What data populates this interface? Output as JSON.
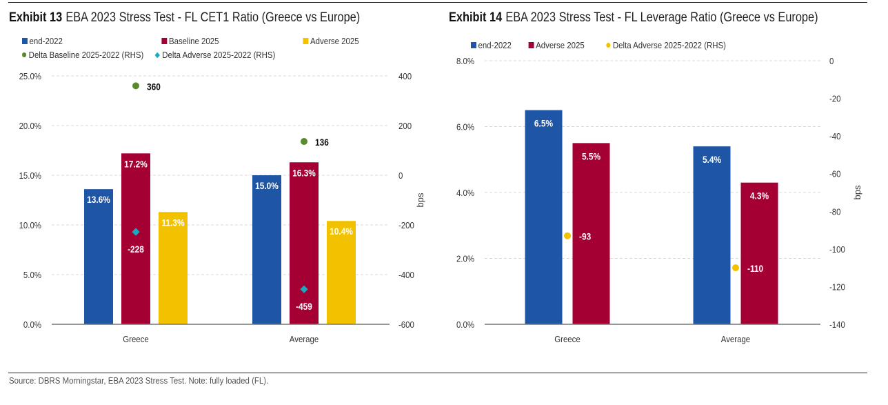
{
  "colors": {
    "end2022": "#1f55a5",
    "baseline2025": "#a50034",
    "adverse2025": "#f2c200",
    "delta_baseline": "#5a8a2e",
    "delta_adverse_cet1": "#1aa9bd",
    "delta_adverse_lev": "#f2c200",
    "grid": "#d8d8d8",
    "axis": "#777777"
  },
  "exhibit13": {
    "number_label": "Exhibit 13",
    "title": "EBA 2023 Stress Test - FL CET1 Ratio (Greece vs Europe)",
    "legend": [
      {
        "label": "end-2022",
        "marker": "square",
        "color_key": "end2022"
      },
      {
        "label": "Baseline 2025",
        "marker": "square",
        "color_key": "baseline2025"
      },
      {
        "label": "Adverse 2025",
        "marker": "square",
        "color_key": "adverse2025"
      },
      {
        "label": "Delta Baseline 2025-2022 (RHS)",
        "marker": "circle",
        "color_key": "delta_baseline"
      },
      {
        "label": "Delta Adverse 2025-2022 (RHS)",
        "marker": "diamond",
        "color_key": "delta_adverse_cet1"
      }
    ]
  },
  "exhibit14": {
    "number_label": "Exhibit 14",
    "title": "EBA 2023 Stress Test - FL Leverage Ratio (Greece vs Europe)",
    "legend": [
      {
        "label": "end-2022",
        "marker": "square",
        "color_key": "end2022"
      },
      {
        "label": "Adverse 2025",
        "marker": "square",
        "color_key": "baseline2025"
      },
      {
        "label": "Delta Adverse 2025-2022 (RHS)",
        "marker": "circle",
        "color_key": "delta_adverse_lev"
      }
    ]
  },
  "source": "Source: DBRS Morningstar, EBA 2023 Stress Test. Note: fully loaded (FL).",
  "chart_data": [
    {
      "type": "bar",
      "title": "EBA 2023 Stress Test - FL CET1 Ratio (Greece vs Europe)",
      "categories": [
        "Greece",
        "Average"
      ],
      "series": [
        {
          "name": "end-2022",
          "values": [
            13.6,
            15.0
          ],
          "labels": [
            "13.6%",
            "15.0%"
          ],
          "axis": "left",
          "kind": "bar"
        },
        {
          "name": "Baseline 2025",
          "values": [
            17.2,
            16.3
          ],
          "labels": [
            "17.2%",
            "16.3%"
          ],
          "axis": "left",
          "kind": "bar"
        },
        {
          "name": "Adverse 2025",
          "values": [
            11.3,
            10.4
          ],
          "labels": [
            "11.3%",
            "10.4%"
          ],
          "axis": "left",
          "kind": "bar"
        },
        {
          "name": "Delta Baseline 2025-2022 (RHS)",
          "values": [
            360,
            136
          ],
          "labels": [
            "360",
            "136"
          ],
          "axis": "right",
          "kind": "scatter",
          "marker": "circle"
        },
        {
          "name": "Delta Adverse 2025-2022 (RHS)",
          "values": [
            -228,
            -459
          ],
          "labels": [
            "-228",
            "-459"
          ],
          "axis": "right",
          "kind": "scatter",
          "marker": "diamond"
        }
      ],
      "ylim": [
        0,
        25
      ],
      "yticks": [
        "0.0%",
        "5.0%",
        "10.0%",
        "15.0%",
        "20.0%",
        "25.0%"
      ],
      "ytick_values": [
        0,
        5,
        10,
        15,
        20,
        25
      ],
      "y2lim": [
        -600,
        400
      ],
      "y2ticks": [
        "-600",
        "-400",
        "-200",
        "0",
        "200",
        "400"
      ],
      "y2tick_values": [
        -600,
        -400,
        -200,
        0,
        200,
        400
      ],
      "xlabel": "",
      "ylabel": "",
      "y2label": "bps",
      "grid": true,
      "legend_position": "top-left"
    },
    {
      "type": "bar",
      "title": "EBA 2023 Stress Test - FL Leverage Ratio (Greece vs Europe)",
      "categories": [
        "Greece",
        "Average"
      ],
      "series": [
        {
          "name": "end-2022",
          "values": [
            6.5,
            5.4
          ],
          "labels": [
            "6.5%",
            "5.4%"
          ],
          "axis": "left",
          "kind": "bar"
        },
        {
          "name": "Adverse 2025",
          "values": [
            5.5,
            4.3
          ],
          "labels": [
            "5.5%",
            "4.3%"
          ],
          "axis": "left",
          "kind": "bar"
        },
        {
          "name": "Delta Adverse 2025-2022 (RHS)",
          "values": [
            -93,
            -110
          ],
          "labels": [
            "-93",
            "-110"
          ],
          "axis": "right",
          "kind": "scatter",
          "marker": "circle"
        }
      ],
      "ylim": [
        0,
        8
      ],
      "yticks": [
        "0.0%",
        "2.0%",
        "4.0%",
        "6.0%",
        "8.0%"
      ],
      "ytick_values": [
        0,
        2,
        4,
        6,
        8
      ],
      "y2lim": [
        -140,
        0
      ],
      "y2ticks": [
        "-140",
        "-120",
        "-100",
        "-80",
        "-60",
        "-40",
        "-20",
        "0"
      ],
      "y2tick_values": [
        -140,
        -120,
        -100,
        -80,
        -60,
        -40,
        -20,
        0
      ],
      "xlabel": "",
      "ylabel": "",
      "y2label": "bps",
      "grid": true,
      "legend_position": "top-left"
    }
  ]
}
